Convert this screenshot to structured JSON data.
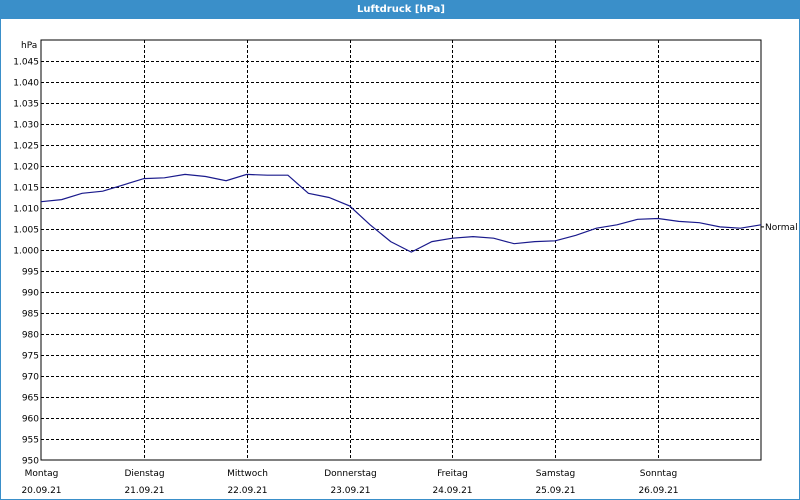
{
  "window": {
    "title": "Luftdruck [hPa]"
  },
  "colors": {
    "titlebar": "#3a8fc9",
    "line": "#1a1a8c",
    "grid": "#000000"
  },
  "chart_data": {
    "type": "line",
    "title": "Luftdruck [hPa]",
    "ylabel": "hPa",
    "ylim": [
      950,
      1050
    ],
    "yticks": [
      950,
      955,
      960,
      965,
      970,
      975,
      980,
      985,
      990,
      995,
      1000,
      1005,
      1010,
      1015,
      1020,
      1025,
      1030,
      1035,
      1040,
      1045
    ],
    "ytick_labels": [
      "950",
      "955",
      "960",
      "965",
      "970",
      "975",
      "980",
      "985",
      "990",
      "995",
      "1.000",
      "1.005",
      "1.010",
      "1.015",
      "1.020",
      "1.025",
      "1.030",
      "1.035",
      "1.040",
      "1.045"
    ],
    "x_unit": "days",
    "xlim": [
      0,
      7
    ],
    "days": [
      {
        "weekday": "Montag",
        "date": "20.09.21"
      },
      {
        "weekday": "Dienstag",
        "date": "21.09.21"
      },
      {
        "weekday": "Mittwoch",
        "date": "22.09.21"
      },
      {
        "weekday": "Donnerstag",
        "date": "23.09.21"
      },
      {
        "weekday": "Freitag",
        "date": "24.09.21"
      },
      {
        "weekday": "Samstag",
        "date": "25.09.21"
      },
      {
        "weekday": "Sonntag",
        "date": "26.09.21"
      }
    ],
    "grid": true,
    "series": [
      {
        "x": [
          0,
          0.2,
          0.4,
          0.6,
          0.8,
          1.0,
          1.2,
          1.4,
          1.6,
          1.8,
          2.0,
          2.2,
          2.4,
          2.6,
          2.8,
          3.0,
          3.2,
          3.4,
          3.6,
          3.8,
          4.0,
          4.2,
          4.4,
          4.6,
          4.8,
          5.0,
          5.2,
          5.4,
          5.6,
          5.8,
          6.0,
          6.2,
          6.4,
          6.6,
          6.8,
          7.0
        ],
        "y": [
          1011.5,
          1012,
          1013.5,
          1014,
          1015.5,
          1017,
          1017.2,
          1018,
          1017.5,
          1016.5,
          1018,
          1017.8,
          1017.8,
          1013.5,
          1012.5,
          1010.5,
          1006,
          1002,
          999.5,
          1002,
          1002.8,
          1003.2,
          1002.8,
          1001.5,
          1002,
          1002.2,
          1003.5,
          1005.2,
          1006,
          1007.3,
          1007.5,
          1006.8,
          1006.5,
          1005.5,
          1005.2,
          1006
        ]
      }
    ],
    "annotations": [
      {
        "text": "Normal",
        "y": 1005.5
      }
    ]
  }
}
